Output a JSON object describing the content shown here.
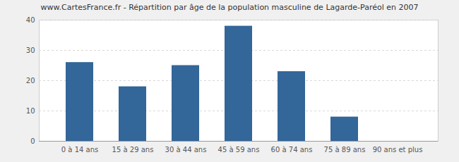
{
  "chart_data": {
    "type": "bar",
    "title": "www.CartesFrance.fr - Répartition par âge de la population masculine de Lagarde-Paréol en 2007",
    "categories": [
      "0 à 14 ans",
      "15 à 29 ans",
      "30 à 44 ans",
      "45 à 59 ans",
      "60 à 74 ans",
      "75 à 89 ans",
      "90 ans et plus"
    ],
    "values": [
      26,
      18,
      25,
      38,
      23,
      8,
      0
    ],
    "color": "#336699",
    "ylim": [
      0,
      40
    ],
    "yticks": [
      0,
      10,
      20,
      30,
      40
    ],
    "grid": true
  }
}
